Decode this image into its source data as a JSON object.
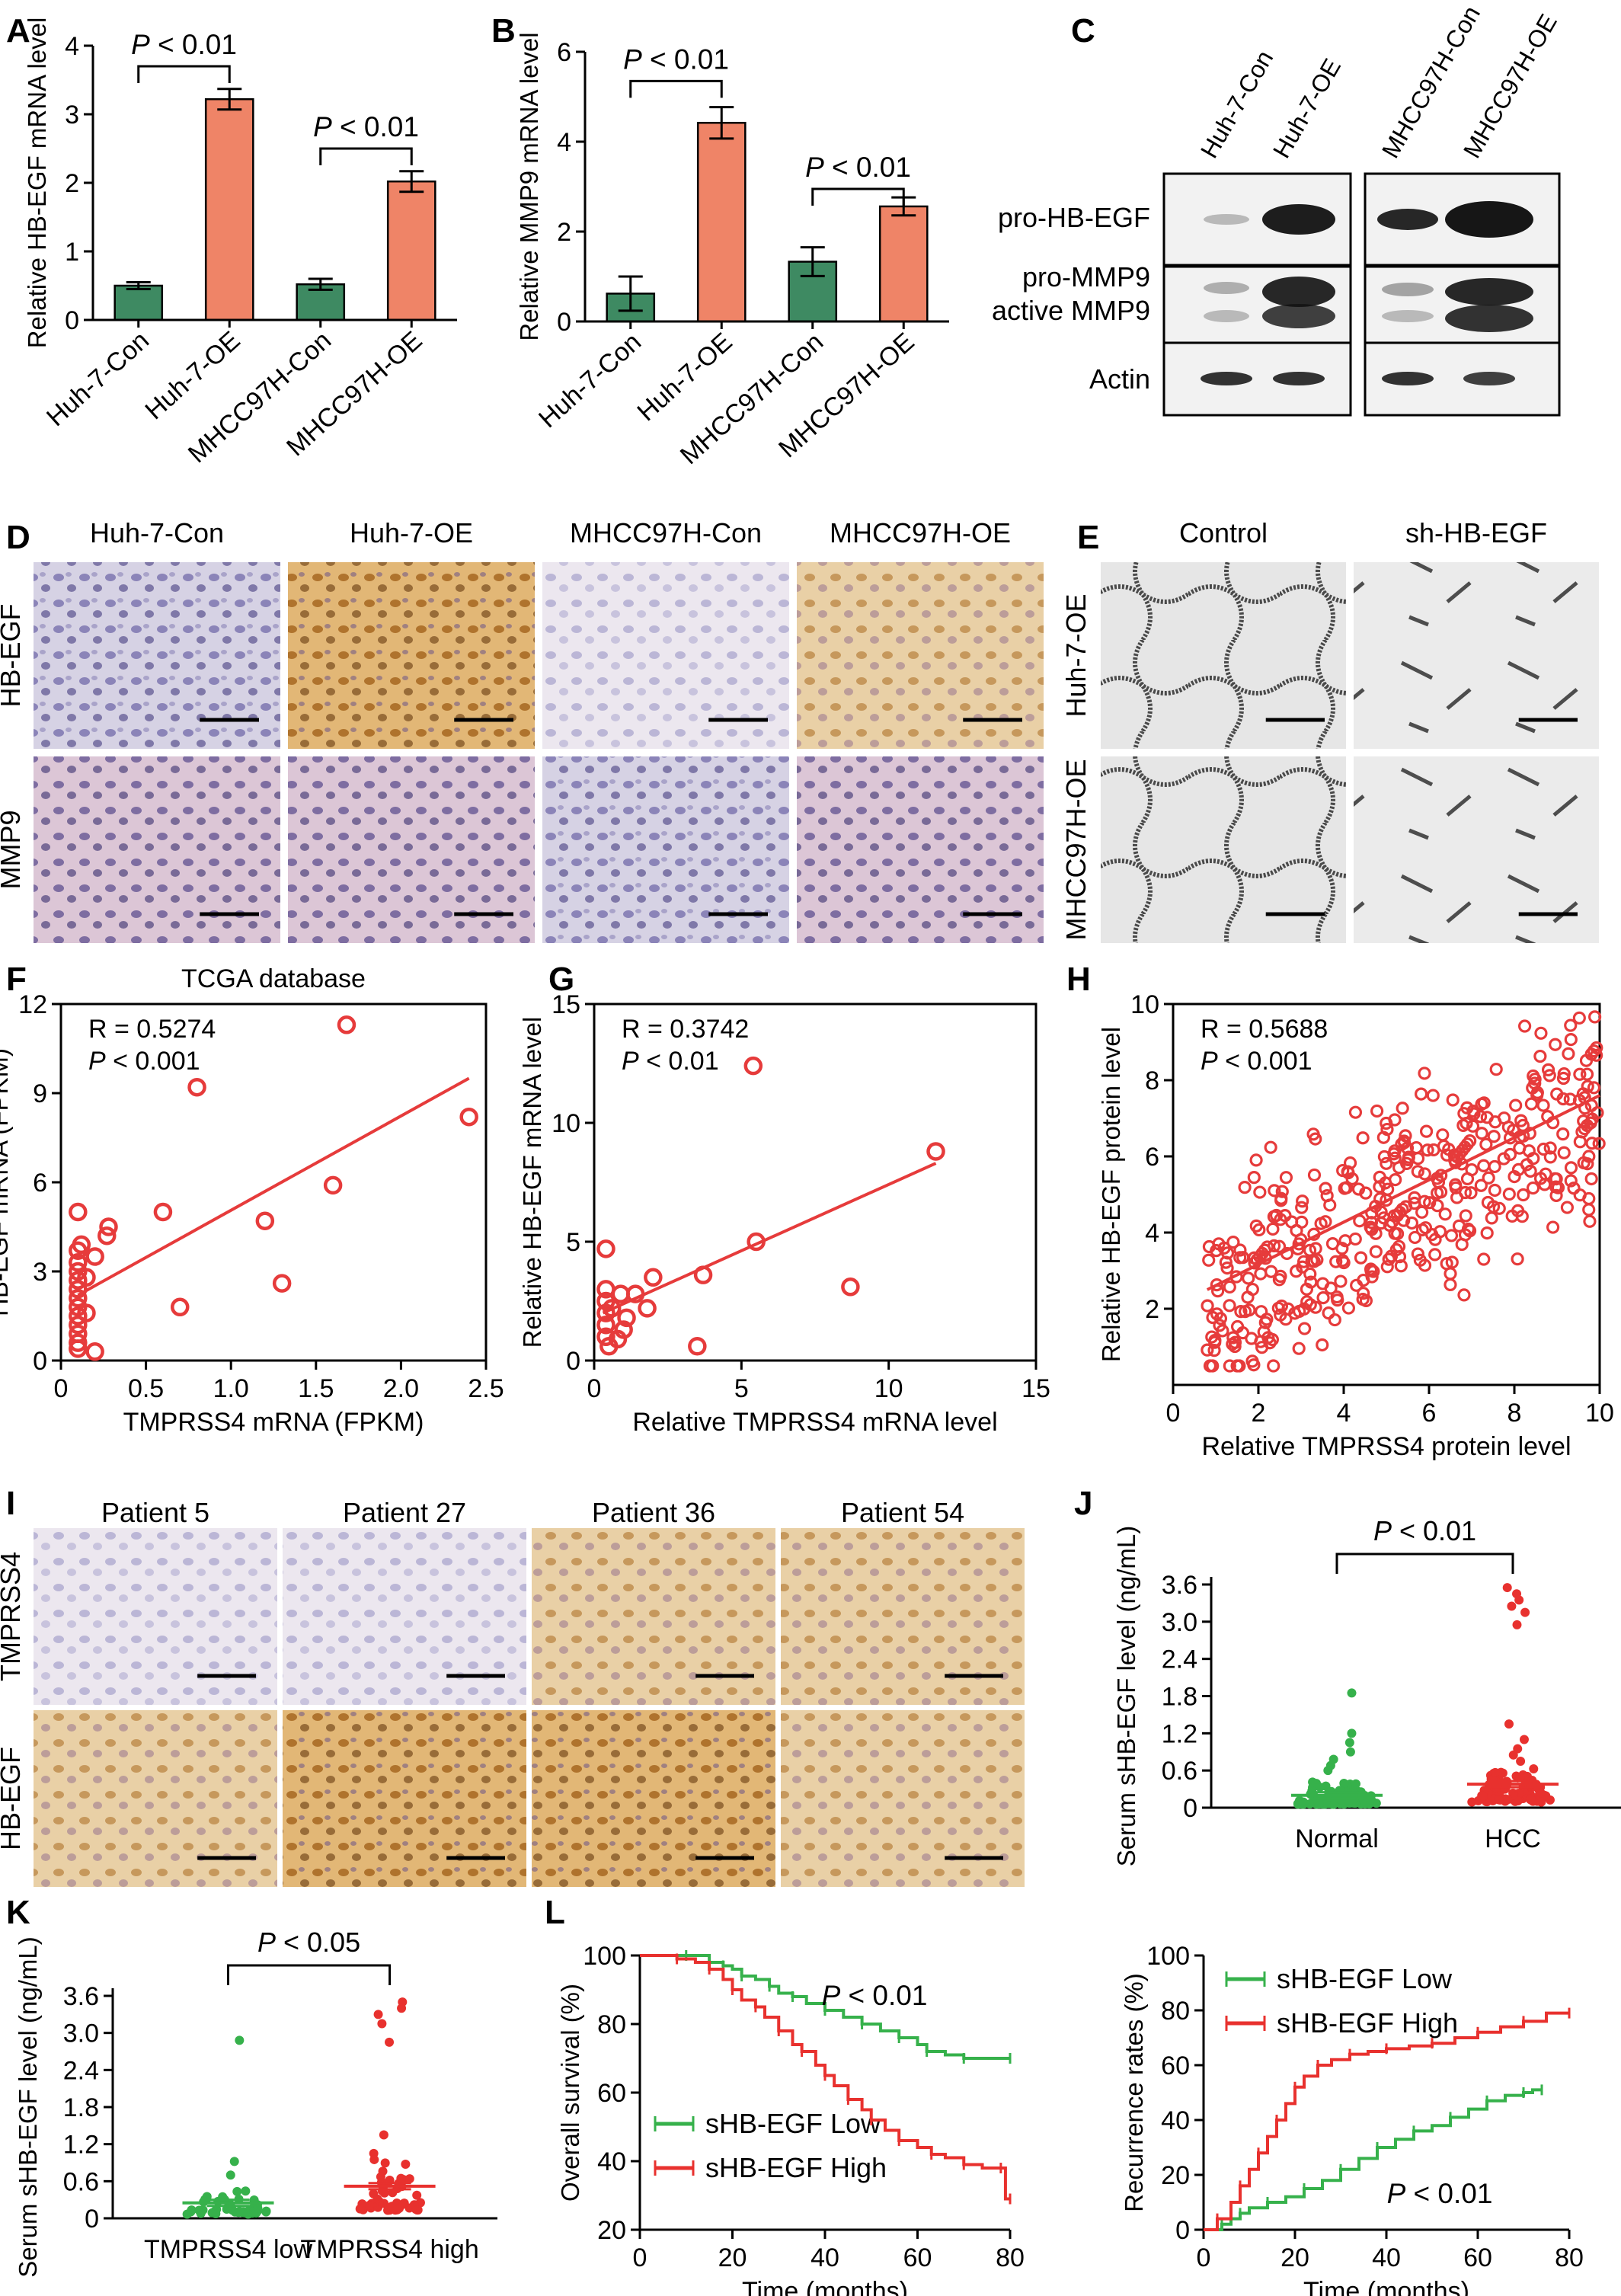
{
  "panel_letters": [
    "A",
    "B",
    "C",
    "D",
    "E",
    "F",
    "G",
    "H",
    "I",
    "J",
    "K",
    "L"
  ],
  "colors": {
    "green": "#3e8a62",
    "salmon": "#ef8467",
    "scatter": "#e63b3b",
    "km_green": "#36b14b",
    "km_red": "#e8312e",
    "brown": "#a86f2c",
    "purple": "#5d5aa0"
  },
  "chart_data": [
    {
      "id": "A",
      "type": "bar",
      "categories": [
        "Huh-7-Con",
        "Huh-7-OE",
        "MHCC97H-Con",
        "MHCC97H-OE"
      ],
      "values": [
        0.5,
        3.22,
        0.52,
        2.02
      ],
      "errors": [
        0.05,
        0.15,
        0.08,
        0.15
      ],
      "ylabel": "Relative HB-EGF mRNA level",
      "ylim": [
        0,
        4
      ],
      "yticks": [
        "0",
        "1",
        "2",
        "3",
        "4"
      ],
      "annotations": [
        "P < 0.01",
        "P < 0.01"
      ]
    },
    {
      "id": "B",
      "type": "bar",
      "categories": [
        "Huh-7-Con",
        "Huh-7-OE",
        "MHCC97H-Con",
        "MHCC97H-OE"
      ],
      "values": [
        0.62,
        4.42,
        1.33,
        2.56
      ],
      "errors": [
        0.38,
        0.35,
        0.32,
        0.2
      ],
      "ylabel": "Relative MMP9 mRNA level",
      "ylim": [
        0,
        6
      ],
      "yticks": [
        "0",
        "2",
        "4",
        "6"
      ],
      "annotations": [
        "P < 0.01",
        "P < 0.01"
      ]
    },
    {
      "id": "F",
      "type": "scatter",
      "title": "TCGA database",
      "xlabel": "TMPRSS4 mRNA (FPKM)",
      "ylabel": "HB-EGF mRNA (FPKM)",
      "xlim": [
        0,
        2.5
      ],
      "ylim": [
        0,
        12
      ],
      "xticks": [
        "0",
        "0.5",
        "1.0",
        "1.5",
        "2.0",
        "2.5"
      ],
      "yticks": [
        "0",
        "3",
        "6",
        "9",
        "12"
      ],
      "annotations": [
        "R = 0.5274",
        "P < 0.001"
      ],
      "fit": [
        [
          0.1,
          2.2
        ],
        [
          2.4,
          9.5
        ]
      ],
      "points": [
        [
          1.68,
          11.3
        ],
        [
          0.8,
          9.2
        ],
        [
          2.4,
          8.2
        ],
        [
          1.6,
          5.9
        ],
        [
          1.2,
          4.7
        ],
        [
          0.6,
          5.0
        ],
        [
          0.28,
          4.5
        ],
        [
          0.27,
          4.2
        ],
        [
          0.1,
          5.0
        ],
        [
          0.7,
          1.8
        ],
        [
          1.3,
          2.6
        ],
        [
          0.2,
          0.3
        ],
        [
          0.2,
          3.5
        ],
        [
          0.1,
          3.7
        ],
        [
          0.1,
          3.3
        ],
        [
          0.1,
          3.0
        ],
        [
          0.1,
          2.7
        ],
        [
          0.1,
          2.4
        ],
        [
          0.1,
          2.1
        ],
        [
          0.1,
          1.8
        ],
        [
          0.1,
          1.5
        ],
        [
          0.1,
          1.2
        ],
        [
          0.1,
          0.9
        ],
        [
          0.1,
          0.6
        ],
        [
          0.1,
          0.4
        ],
        [
          0.15,
          2.8
        ],
        [
          0.15,
          1.6
        ],
        [
          0.12,
          3.9
        ]
      ]
    },
    {
      "id": "G",
      "type": "scatter",
      "xlabel": "Relative TMPRSS4 mRNA level",
      "ylabel": "Relative HB-EGF mRNA level",
      "xlim": [
        0,
        15
      ],
      "ylim": [
        0,
        15
      ],
      "xticks": [
        "0",
        "5",
        "10",
        "15"
      ],
      "yticks": [
        "0",
        "5",
        "10",
        "15"
      ],
      "annotations": [
        "R = 0.3742",
        "P < 0.01"
      ],
      "fit": [
        [
          0.3,
          2.0
        ],
        [
          11.6,
          8.3
        ]
      ],
      "points": [
        [
          5.4,
          12.4
        ],
        [
          11.6,
          8.8
        ],
        [
          5.5,
          5.0
        ],
        [
          8.7,
          3.1
        ],
        [
          3.7,
          3.6
        ],
        [
          2.0,
          3.5
        ],
        [
          1.8,
          2.2
        ],
        [
          1.4,
          2.8
        ],
        [
          3.5,
          0.6
        ],
        [
          0.4,
          4.7
        ],
        [
          0.4,
          3.0
        ],
        [
          0.4,
          2.5
        ],
        [
          0.4,
          2.0
        ],
        [
          0.4,
          1.5
        ],
        [
          0.4,
          1.0
        ],
        [
          0.5,
          0.6
        ],
        [
          0.9,
          2.8
        ],
        [
          1.1,
          1.8
        ],
        [
          1.0,
          1.3
        ],
        [
          0.8,
          0.9
        ],
        [
          0.6,
          2.2
        ]
      ]
    },
    {
      "id": "H",
      "type": "scatter",
      "xlabel": "Relative TMPRSS4 protein level",
      "ylabel": "Relative HB-EGF protein level",
      "xlim": [
        0,
        10
      ],
      "ylim": [
        0,
        10
      ],
      "xticks": [
        "0",
        "2",
        "4",
        "6",
        "8",
        "10"
      ],
      "yticks": [
        "2",
        "4",
        "6",
        "8",
        "10"
      ],
      "annotations": [
        "R = 0.5688",
        "P < 0.001"
      ],
      "fit": [
        [
          0.8,
          2.5
        ],
        [
          10,
          7.6
        ]
      ]
    },
    {
      "id": "J",
      "type": "scatter",
      "xlabel": "",
      "ylabel": "Serum sHB-EGF level (ng/mL)",
      "categories": [
        "Normal",
        "HCC"
      ],
      "ylim": [
        0,
        3.6
      ],
      "yticks": [
        "0",
        "0.6",
        "1.2",
        "1.8",
        "2.4",
        "3.0",
        "3.6"
      ],
      "means": [
        0.2,
        0.38
      ],
      "annotations": [
        "P < 0.01"
      ]
    },
    {
      "id": "K",
      "type": "scatter",
      "xlabel": "",
      "ylabel": "Serum sHB-EGF level (ng/mL)",
      "categories": [
        "TMPRSS4 low",
        "TMPRSS4 high"
      ],
      "ylim": [
        0,
        3.6
      ],
      "yticks": [
        "0",
        "0.6",
        "1.2",
        "1.8",
        "2.4",
        "3.0",
        "3.6"
      ],
      "means": [
        0.25,
        0.52
      ],
      "annotations": [
        "P < 0.05"
      ]
    },
    {
      "id": "L1",
      "type": "line",
      "xlabel": "Time (months)",
      "ylabel": "Overall survival (%)",
      "xlim": [
        0,
        80
      ],
      "ylim": [
        20,
        100
      ],
      "xticks": [
        "0",
        "20",
        "40",
        "60",
        "80"
      ],
      "yticks": [
        "20",
        "40",
        "60",
        "80",
        "100"
      ],
      "annotations": [
        "P < 0.01"
      ],
      "series": [
        {
          "name": "sHB-EGF Low",
          "x": [
            0,
            10,
            15,
            18,
            20,
            22,
            25,
            28,
            30,
            33,
            36,
            40,
            44,
            48,
            52,
            56,
            60,
            62,
            66,
            70,
            75,
            80
          ],
          "y": [
            100,
            100,
            98,
            97,
            96,
            94,
            93,
            91,
            89,
            88,
            86,
            84,
            82,
            80,
            78,
            76,
            74,
            72,
            71,
            70,
            70,
            70
          ]
        },
        {
          "name": "sHB-EGF High",
          "x": [
            0,
            8,
            12,
            15,
            18,
            20,
            22,
            25,
            27,
            30,
            33,
            35,
            38,
            40,
            42,
            45,
            48,
            50,
            53,
            56,
            60,
            63,
            66,
            70,
            74,
            78,
            79,
            80
          ],
          "y": [
            100,
            99,
            98,
            96,
            93,
            90,
            87,
            85,
            82,
            78,
            74,
            72,
            68,
            65,
            62,
            58,
            55,
            52,
            49,
            46,
            44,
            42,
            41,
            39,
            38,
            38,
            29,
            29
          ]
        }
      ]
    },
    {
      "id": "L2",
      "type": "line",
      "xlabel": "Time (months)",
      "ylabel": "Recurrence rates (%)",
      "xlim": [
        0,
        80
      ],
      "ylim": [
        0,
        100
      ],
      "xticks": [
        "0",
        "20",
        "40",
        "60",
        "80"
      ],
      "yticks": [
        "0",
        "20",
        "40",
        "60",
        "80",
        "100"
      ],
      "annotations": [
        "P < 0.01"
      ],
      "series": [
        {
          "name": "sHB-EGF Low",
          "x": [
            0,
            4,
            6,
            8,
            10,
            14,
            18,
            22,
            26,
            30,
            34,
            38,
            42,
            46,
            50,
            54,
            58,
            62,
            66,
            70,
            72,
            74
          ],
          "y": [
            0,
            2,
            4,
            6,
            8,
            10,
            12,
            15,
            18,
            22,
            26,
            30,
            33,
            36,
            38,
            41,
            44,
            47,
            49,
            50,
            51,
            51
          ]
        },
        {
          "name": "sHB-EGF High",
          "x": [
            0,
            3,
            6,
            8,
            10,
            12,
            14,
            16,
            18,
            20,
            22,
            25,
            28,
            32,
            36,
            40,
            45,
            50,
            55,
            60,
            65,
            70,
            75,
            80
          ],
          "y": [
            0,
            4,
            10,
            16,
            22,
            28,
            34,
            40,
            46,
            52,
            56,
            60,
            62,
            64,
            65,
            66,
            67,
            68,
            70,
            72,
            74,
            76,
            79,
            79
          ]
        }
      ]
    }
  ],
  "blot": {
    "lanes": [
      "Huh-7-Con",
      "Huh-7-OE",
      "MHCC97H-Con",
      "MHCC97H-OE"
    ],
    "rows": [
      "pro-HB-EGF",
      "pro-MMP9",
      "active MMP9",
      "Actin"
    ]
  },
  "ihc_D": {
    "columns": [
      "Huh-7-Con",
      "Huh-7-OE",
      "MHCC97H-Con",
      "MHCC97H-OE"
    ],
    "rows": [
      "HB-EGF",
      "MMP9"
    ]
  },
  "tube_E": {
    "columns": [
      "Control",
      "sh-HB-EGF"
    ],
    "rows": [
      "Huh-7-OE",
      "MHCC97H-OE"
    ]
  },
  "ihc_I": {
    "columns": [
      "Patient 5",
      "Patient 27",
      "Patient 36",
      "Patient 54"
    ],
    "rows": [
      "TMPRSS4",
      "HB-EGF"
    ]
  }
}
